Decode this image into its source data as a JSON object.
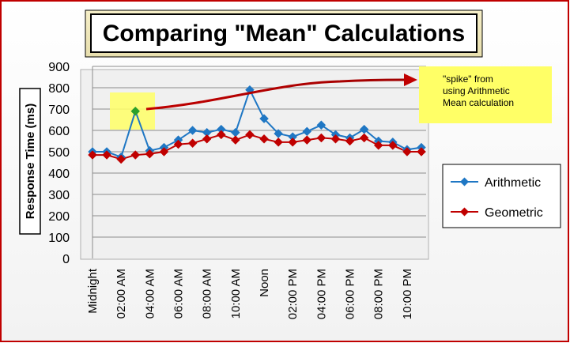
{
  "chart_data": {
    "type": "line",
    "title": "Comparing \"Mean\" Calculations",
    "ylabel": "Response Time (ms)",
    "xlabel": "",
    "ylim": [
      0,
      900
    ],
    "yticks": [
      0,
      100,
      200,
      300,
      400,
      500,
      600,
      700,
      800,
      900
    ],
    "categories": [
      "Midnight",
      "",
      "02:00 AM",
      "",
      "04:00 AM",
      "",
      "06:00 AM",
      "",
      "08:00 AM",
      "",
      "10:00 AM",
      "",
      "Noon",
      "",
      "02:00 PM",
      "",
      "04:00 PM",
      "",
      "06:00 PM",
      "",
      "08:00 PM",
      "",
      "10:00 PM",
      ""
    ],
    "xtick_labels": [
      "Midnight",
      "02:00 AM",
      "04:00 AM",
      "06:00 AM",
      "08:00 AM",
      "10:00 AM",
      "Noon",
      "02:00 PM",
      "04:00 PM",
      "06:00 PM",
      "08:00 PM",
      "10:00 PM"
    ],
    "series": [
      {
        "name": "Arithmetic",
        "color": "#1f77c4",
        "marker": "diamond",
        "values": [
          500,
          500,
          475,
          690,
          505,
          520,
          555,
          600,
          590,
          605,
          590,
          790,
          655,
          585,
          570,
          595,
          625,
          580,
          565,
          605,
          550,
          545,
          510,
          520
        ]
      },
      {
        "name": "Geometric",
        "color": "#c00000",
        "marker": "diamond",
        "values": [
          485,
          485,
          465,
          485,
          490,
          500,
          535,
          540,
          560,
          580,
          555,
          580,
          560,
          545,
          545,
          555,
          565,
          560,
          550,
          565,
          530,
          530,
          500,
          500
        ]
      }
    ],
    "highlight_point": {
      "series": "Arithmetic",
      "index": 3,
      "color": "#2aa02a"
    },
    "annotation": {
      "lines": [
        "\"spike\" from",
        "using Arithmetic",
        "Mean calculation"
      ],
      "background": "#ffff66"
    },
    "legend": {
      "placement": "right",
      "entries": [
        "Arithmetic",
        "Geometric"
      ]
    },
    "grid": true,
    "plot_background": "#f0f0f0",
    "frame_color": "#c00000"
  }
}
